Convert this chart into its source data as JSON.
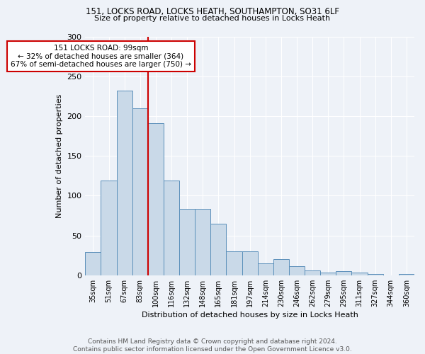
{
  "title1": "151, LOCKS ROAD, LOCKS HEATH, SOUTHAMPTON, SO31 6LF",
  "title2": "Size of property relative to detached houses in Locks Heath",
  "xlabel": "Distribution of detached houses by size in Locks Heath",
  "ylabel": "Number of detached properties",
  "bar_labels": [
    "35sqm",
    "51sqm",
    "67sqm",
    "83sqm",
    "100sqm",
    "116sqm",
    "132sqm",
    "148sqm",
    "165sqm",
    "181sqm",
    "197sqm",
    "214sqm",
    "230sqm",
    "246sqm",
    "262sqm",
    "279sqm",
    "295sqm",
    "311sqm",
    "327sqm",
    "344sqm",
    "360sqm"
  ],
  "bar_values": [
    29,
    119,
    232,
    210,
    191,
    119,
    83,
    83,
    65,
    30,
    30,
    15,
    20,
    11,
    6,
    3,
    5,
    3,
    2,
    0,
    2
  ],
  "bar_color": "#c9d9e8",
  "bar_edgecolor": "#5a8fba",
  "vline_index": 4,
  "marker_label": "151 LOCKS ROAD: 99sqm",
  "annotation_line1": "← 32% of detached houses are smaller (364)",
  "annotation_line2": "67% of semi-detached houses are larger (750) →",
  "vline_color": "#cc0000",
  "annotation_box_edgecolor": "#cc0000",
  "footer": "Contains HM Land Registry data © Crown copyright and database right 2024.\nContains public sector information licensed under the Open Government Licence v3.0.",
  "ylim": [
    0,
    300
  ],
  "yticks": [
    0,
    50,
    100,
    150,
    200,
    250,
    300
  ],
  "background_color": "#eef2f8",
  "grid_color": "#ffffff"
}
